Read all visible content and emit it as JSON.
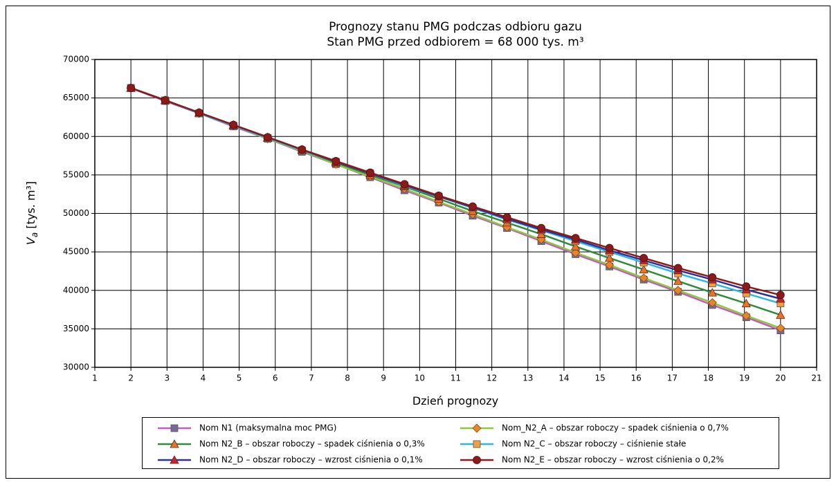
{
  "chart_data": {
    "type": "line",
    "title": "Prognozy stanu PMG podczas odbioru gazu",
    "subtitle": "Stan PMG przed odbiorem = 68 000 tys. m³",
    "x_label": "Dzień prognozy",
    "y_label": [
      "V",
      "a",
      " [tys. m³]"
    ],
    "x": [
      2,
      2.95,
      3.89,
      4.84,
      5.79,
      6.74,
      7.68,
      8.63,
      9.58,
      10.53,
      11.47,
      12.42,
      13.37,
      14.32,
      15.26,
      16.21,
      17.16,
      18.11,
      19.05,
      20
    ],
    "xlim": [
      1,
      21
    ],
    "xticks": [
      1,
      2,
      3,
      4,
      5,
      6,
      7,
      8,
      9,
      10,
      11,
      12,
      13,
      14,
      15,
      16,
      17,
      18,
      19,
      20,
      21
    ],
    "ylim": [
      30000,
      70000
    ],
    "yticks": [
      30000,
      35000,
      40000,
      45000,
      50000,
      55000,
      60000,
      65000,
      70000
    ],
    "grid": true,
    "legend": "bottom",
    "series": [
      {
        "name": "Nom N1 (maksymalna moc PMG)",
        "color": "#c05cc0",
        "marker": "square",
        "marker_color": "#7a6a9a",
        "values": [
          66300,
          64600,
          63000,
          61300,
          59700,
          58000,
          56400,
          54700,
          53000,
          51400,
          49700,
          48100,
          46400,
          44700,
          43100,
          41400,
          39800,
          38100,
          36500,
          34800
        ]
      },
      {
        "name": "Nom_N2_A – obszar roboczy – spadek ciśnienia o 0,7%",
        "color": "#8dc63f",
        "marker": "diamond",
        "marker_color": "#e8842c",
        "values": [
          66300,
          64700,
          63000,
          61400,
          59700,
          58100,
          56400,
          54800,
          53200,
          51500,
          49900,
          48200,
          46600,
          44900,
          43300,
          41600,
          40000,
          38400,
          36700,
          35100
        ]
      },
      {
        "name": "Nom N2_B – obszar roboczy – spadek ciśnienia o 0,3%",
        "color": "#2e8b3a",
        "marker": "triangle",
        "marker_color": "#e8742c",
        "values": [
          66300,
          64700,
          63000,
          61400,
          59800,
          58200,
          56600,
          55000,
          53500,
          51900,
          50300,
          48800,
          47300,
          45700,
          44200,
          42700,
          41200,
          39700,
          38300,
          36800
        ]
      },
      {
        "name": "Nom N2_C – obszar roboczy – ciśnienie stałe",
        "color": "#29b6e8",
        "marker": "square",
        "marker_color": "#f0a040",
        "values": [
          66300,
          64700,
          63000,
          61400,
          59800,
          58200,
          56700,
          55200,
          53600,
          52200,
          50700,
          49200,
          47800,
          46400,
          45000,
          43600,
          42200,
          40900,
          39600,
          38300
        ]
      },
      {
        "name": "Nom N2_D – obszar roboczy – wzrost ciśnienia o 0,1%",
        "color": "#2e3192",
        "marker": "triangle",
        "marker_color": "#c0282c",
        "values": [
          66300,
          64700,
          63100,
          61500,
          59900,
          58300,
          56700,
          55200,
          53700,
          52200,
          50800,
          49300,
          47900,
          46600,
          45200,
          43900,
          42600,
          41400,
          40100,
          38900
        ]
      },
      {
        "name": "Nom N2_E – obszar roboczy – wzrost ciśnienia o 0,2%",
        "color": "#8b1a1a",
        "marker": "circle",
        "marker_color": "#8b1a1a",
        "values": [
          66300,
          64700,
          63100,
          61500,
          59900,
          58300,
          56800,
          55300,
          53800,
          52300,
          50900,
          49500,
          48100,
          46800,
          45500,
          44200,
          42900,
          41700,
          40500,
          39400
        ]
      }
    ]
  }
}
